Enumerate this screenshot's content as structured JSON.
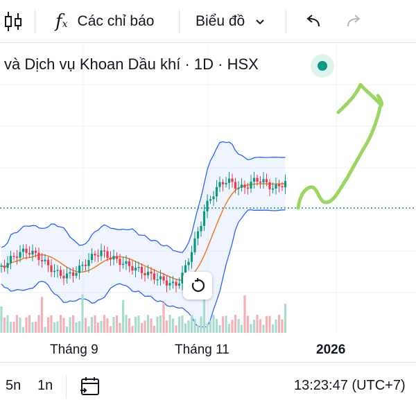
{
  "toolbar": {
    "indicators_label": "Các chỉ báo",
    "chart_type_label": "Biểu đồ",
    "icons": [
      "candlestick-icon",
      "function-icon",
      "chevron-down-icon",
      "undo-icon",
      "redo-icon"
    ]
  },
  "chart_header": {
    "title": "và Dịch vụ Khoan Dầu khí · 1D · HSX",
    "status_color": "#089981"
  },
  "colors": {
    "up": "#089981",
    "down": "#f23645",
    "ma": "#ef7d22",
    "band": "#2962ff",
    "annotation": "#8fd14f"
  },
  "chart_data": {
    "type": "candlestick",
    "x_labels": [
      "Tháng 9",
      "Tháng 11",
      "2026"
    ],
    "overlays": [
      "Bollinger Bands",
      "Volume",
      "Hand-drawn upward arrow"
    ],
    "grid": true
  },
  "bottom_bar": {
    "range_5n": "5n",
    "range_1n": "1n",
    "clock": "13:23:47 (UTC+7)",
    "icons": [
      "calendar-goto-icon"
    ]
  }
}
